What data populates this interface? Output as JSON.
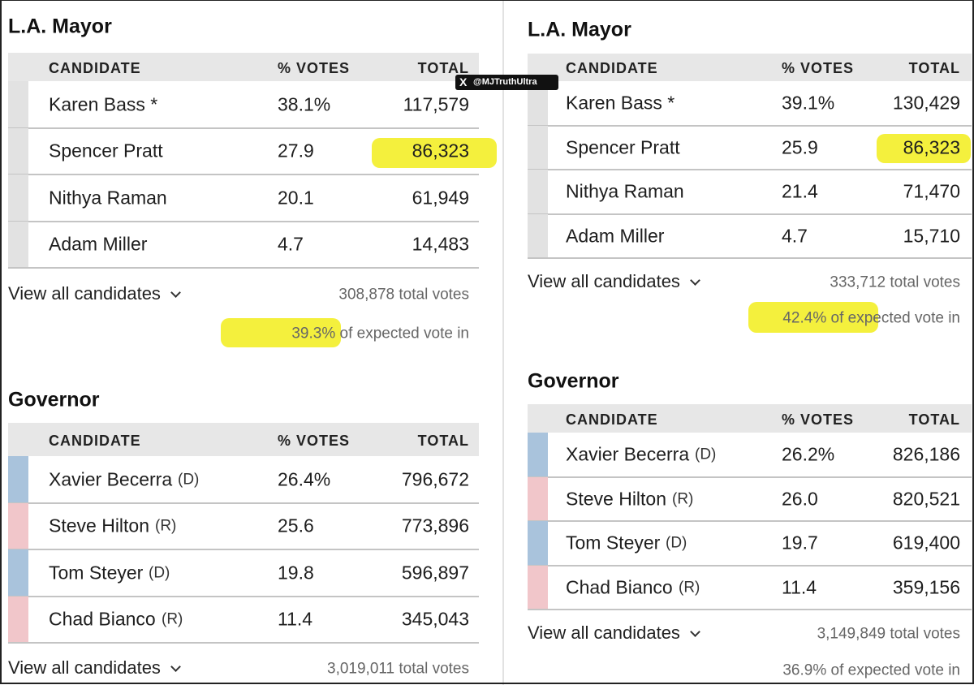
{
  "watermark": "@MJTruthUltra",
  "panels": [
    {
      "races": [
        {
          "title": "L.A. Mayor",
          "columns": [
            "CANDIDATE",
            "% VOTES",
            "TOTAL"
          ],
          "rows": [
            {
              "name": "Karen Bass *",
              "pct": "38.1%",
              "total": "117,579"
            },
            {
              "name": "Spencer Pratt",
              "pct": "27.9",
              "total": "86,323"
            },
            {
              "name": "Nithya Raman",
              "pct": "20.1",
              "total": "61,949"
            },
            {
              "name": "Adam Miller",
              "pct": "4.7",
              "total": "14,483"
            }
          ],
          "view_all": "View all candidates",
          "total_votes": "308,878 total votes",
          "expected": "39.3% of expected vote in"
        },
        {
          "title": "Governor",
          "columns": [
            "CANDIDATE",
            "% VOTES",
            "TOTAL"
          ],
          "rows": [
            {
              "name": "Xavier Becerra",
              "party": "(D)",
              "pct": "26.4%",
              "total": "796,672"
            },
            {
              "name": "Steve Hilton",
              "party": "(R)",
              "pct": "25.6",
              "total": "773,896"
            },
            {
              "name": "Tom Steyer",
              "party": "(D)",
              "pct": "19.8",
              "total": "596,897"
            },
            {
              "name": "Chad Bianco",
              "party": "(R)",
              "pct": "11.4",
              "total": "345,043"
            }
          ],
          "view_all": "View all candidates",
          "total_votes": "3,019,011 total votes"
        }
      ]
    },
    {
      "races": [
        {
          "title": "L.A. Mayor",
          "columns": [
            "CANDIDATE",
            "% VOTES",
            "TOTAL"
          ],
          "rows": [
            {
              "name": "Karen Bass *",
              "pct": "39.1%",
              "total": "130,429"
            },
            {
              "name": "Spencer Pratt",
              "pct": "25.9",
              "total": "86,323"
            },
            {
              "name": "Nithya Raman",
              "pct": "21.4",
              "total": "71,470"
            },
            {
              "name": "Adam Miller",
              "pct": "4.7",
              "total": "15,710"
            }
          ],
          "view_all": "View all candidates",
          "total_votes": "333,712 total votes",
          "expected": "42.4% of expected vote in"
        },
        {
          "title": "Governor",
          "columns": [
            "CANDIDATE",
            "% VOTES",
            "TOTAL"
          ],
          "rows": [
            {
              "name": "Xavier Becerra",
              "party": "(D)",
              "pct": "26.2%",
              "total": "826,186"
            },
            {
              "name": "Steve Hilton",
              "party": "(R)",
              "pct": "26.0",
              "total": "820,521"
            },
            {
              "name": "Tom Steyer",
              "party": "(D)",
              "pct": "19.7",
              "total": "619,400"
            },
            {
              "name": "Chad Bianco",
              "party": "(R)",
              "pct": "11.4",
              "total": "359,156"
            }
          ],
          "view_all": "View all candidates",
          "total_votes": "3,149,849 total votes",
          "expected": "36.9% of expected vote in"
        }
      ]
    }
  ]
}
